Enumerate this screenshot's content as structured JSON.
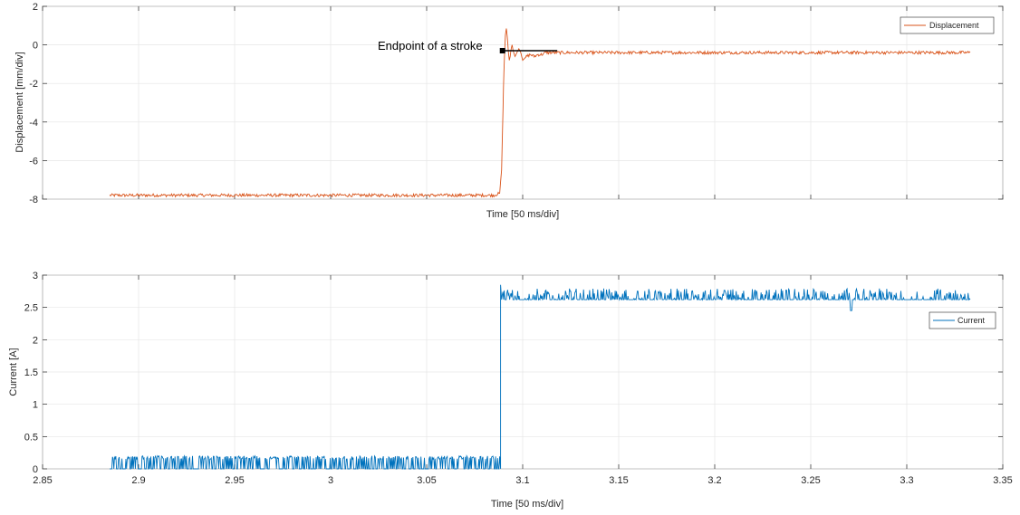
{
  "chart_data": [
    {
      "type": "line",
      "xlabel": "Time [50 ms/div]",
      "ylabel": "Displacement [mm/div]",
      "xlim": [
        2.85,
        3.35
      ],
      "ylim": [
        -8,
        2
      ],
      "yticks": [
        2,
        0,
        -2,
        -4,
        -6,
        -8
      ],
      "xticks": [
        2.85,
        2.9,
        2.95,
        3.0,
        3.05,
        3.1,
        3.15,
        3.2,
        3.25,
        3.3,
        3.35
      ],
      "show_xtick_labels": false,
      "grid": true,
      "legend": {
        "location": "top-right",
        "entries": [
          "Displacement"
        ]
      },
      "series": [
        {
          "name": "Displacement",
          "color": "#D95319",
          "x": [
            2.885,
            2.9,
            2.95,
            3.0,
            3.05,
            3.085,
            3.088,
            3.089,
            3.0895,
            3.09,
            3.0905,
            3.091,
            3.0915,
            3.092,
            3.0925,
            3.093,
            3.0935,
            3.094,
            3.0945,
            3.095,
            3.096,
            3.097,
            3.098,
            3.099,
            3.1,
            3.102,
            3.104,
            3.106,
            3.108,
            3.11,
            3.112,
            3.115,
            3.12,
            3.15,
            3.2,
            3.25,
            3.3,
            3.333
          ],
          "y": [
            -7.8,
            -7.8,
            -7.8,
            -7.8,
            -7.8,
            -7.8,
            -7.7,
            -6.5,
            -4.5,
            -2.2,
            -0.6,
            0.5,
            0.85,
            0.4,
            -0.3,
            -0.8,
            -0.6,
            -0.2,
            0.0,
            -0.3,
            -0.6,
            -0.4,
            -0.2,
            -0.4,
            -0.8,
            -0.6,
            -0.5,
            -0.6,
            -0.5,
            -0.5,
            -0.4,
            -0.4,
            -0.4,
            -0.4,
            -0.4,
            -0.4,
            -0.4,
            -0.4
          ],
          "noise_amplitude": 0.08
        }
      ],
      "annotations": [
        {
          "text": "Endpoint of a stroke",
          "x": 3.0895,
          "y": -0.3,
          "marker": "square",
          "segment_to_x": 3.118
        }
      ]
    },
    {
      "type": "line",
      "xlabel": "Time [50 ms/div]",
      "ylabel": "Current [A]",
      "xlim": [
        2.85,
        3.35
      ],
      "ylim": [
        0,
        3
      ],
      "yticks": [
        3,
        2.5,
        2,
        1.5,
        1,
        0.5,
        0
      ],
      "xticks": [
        2.85,
        2.9,
        2.95,
        3.0,
        3.05,
        3.1,
        3.15,
        3.2,
        3.25,
        3.3,
        3.35
      ],
      "xtick_labels": [
        "2.85",
        "2.9",
        "2.95",
        "3",
        "3.05",
        "3.1",
        "3.15",
        "3.2",
        "3.25",
        "3.3",
        "3.35"
      ],
      "grid": true,
      "legend": {
        "location": "right",
        "entries": [
          "Current"
        ]
      },
      "series": [
        {
          "name": "Current",
          "color": "#0072BD",
          "segments": [
            {
              "x_start": 2.885,
              "x_end": 3.088,
              "low": 0.0,
              "high": 0.2
            },
            {
              "x_start": 3.089,
              "x_end": 3.333,
              "low": 2.62,
              "high": 2.85
            }
          ],
          "step_at": 3.0885,
          "dip": {
            "x": 3.271,
            "y": 2.45
          }
        }
      ]
    }
  ]
}
